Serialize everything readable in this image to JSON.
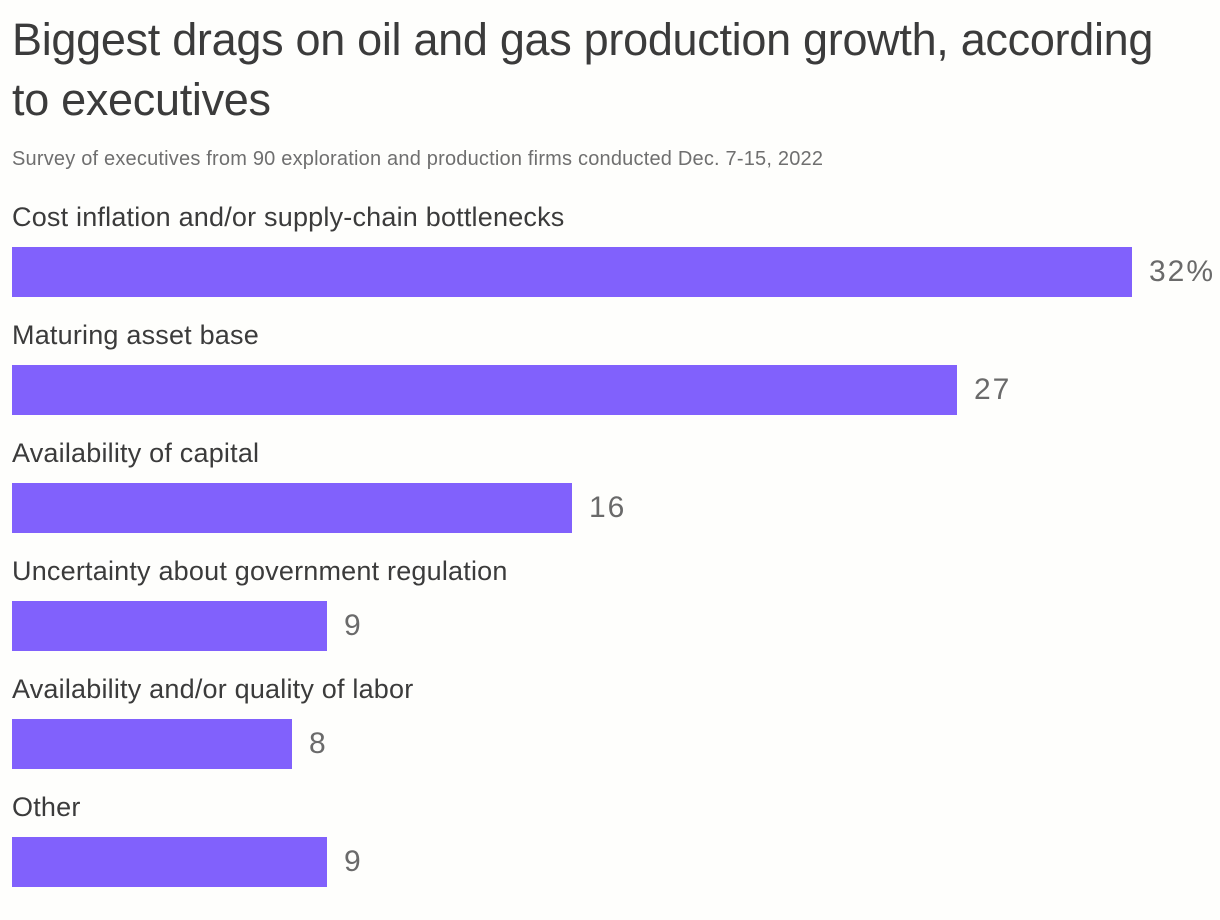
{
  "chart_data": {
    "type": "bar",
    "orientation": "horizontal",
    "title": "Biggest drags on oil and gas production growth, according to executives",
    "subtitle": "Survey of executives from 90 exploration and production firms conducted Dec. 7-15, 2022",
    "categories": [
      "Cost inflation and/or supply-chain bottlenecks",
      "Maturing asset base",
      "Availability of capital",
      "Uncertainty about government regulation",
      "Availability and/or quality of labor",
      "Other"
    ],
    "values": [
      32,
      27,
      16,
      9,
      8,
      9
    ],
    "value_labels": [
      "32%",
      "27",
      "16",
      "9",
      "8",
      "9"
    ],
    "unit": "%",
    "xlim": [
      0,
      32
    ],
    "grid": "off",
    "legend": "none",
    "value_label_position": "right-of-bar",
    "colors": {
      "bar": "#8161fc",
      "category_label": "#3b3b3b",
      "value_label": "#6a6a6a",
      "title": "#3b3b3b",
      "subtitle": "#6f6f6f",
      "background": "#fefefc"
    }
  }
}
